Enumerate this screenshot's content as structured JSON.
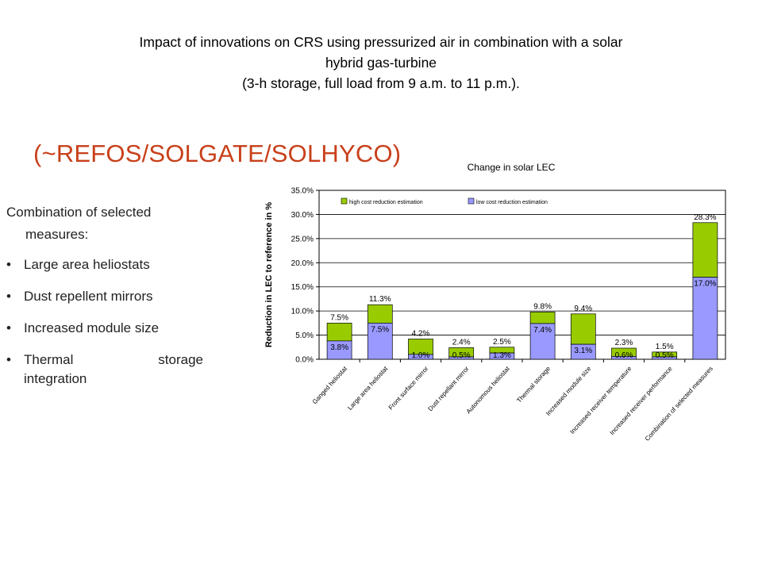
{
  "slide": {
    "title_lines": [
      "Impact of innovations on CRS using pressurized air in combination with a solar",
      "hybrid gas-turbine",
      "(3-h storage, full load from 9 a.m. to 11 p.m.)."
    ],
    "subtitle": "(~REFOS/SOLGATE/SOLHYCO)",
    "intro_lines": [
      "Combination of selected",
      "measures:"
    ],
    "bullets": [
      "Large area heliostats",
      "Dust repellent mirrors",
      "Increased module size",
      "Thermal storage integration"
    ]
  },
  "colors": {
    "subtitle": "#c8401a",
    "high": "#99cc00",
    "low": "#9999ff"
  },
  "chart_data": {
    "type": "bar",
    "stacked": true,
    "title": "Change in solar LEC",
    "ylabel": "Reduction in LEC to reference in %",
    "xlabel": "",
    "ylim": [
      0,
      35
    ],
    "y_ticks": [
      "0.0%",
      "5.0%",
      "10.0%",
      "15.0%",
      "20.0%",
      "25.0%",
      "30.0%",
      "35.0%"
    ],
    "legend_position": "top",
    "categories": [
      "Ganged heliostat",
      "Large area heliostat",
      "Front surface mirror",
      "Dust repellant mirror",
      "Autonomous heliostat",
      "Thermal storage",
      "Increased module size",
      "Increased receiver temperature",
      "Increased receiver performance",
      "Combination of selected measures"
    ],
    "series": [
      {
        "name": "low cost reduction estimation",
        "values": [
          3.8,
          7.5,
          1.0,
          0.5,
          1.3,
          7.4,
          3.1,
          0.6,
          0.5,
          17.0
        ],
        "labels": [
          "3.8%",
          "7.5%",
          "1.0%",
          "0.5%",
          "1.3%",
          "7.4%",
          "3.1%",
          "0.6%",
          "0.5%",
          "17.0%"
        ]
      },
      {
        "name": "high cost reduction estimation",
        "totals": [
          7.5,
          11.3,
          4.2,
          2.4,
          2.5,
          9.8,
          9.4,
          2.3,
          1.5,
          28.3
        ],
        "labels": [
          "7.5%",
          "11.3%",
          "4.2%",
          "2.4%",
          "2.5%",
          "9.8%",
          "9.4%",
          "2.3%",
          "1.5%",
          "28.3%"
        ]
      }
    ],
    "legend": [
      "high cost reduction estimation",
      "low cost reduction estimation"
    ]
  }
}
